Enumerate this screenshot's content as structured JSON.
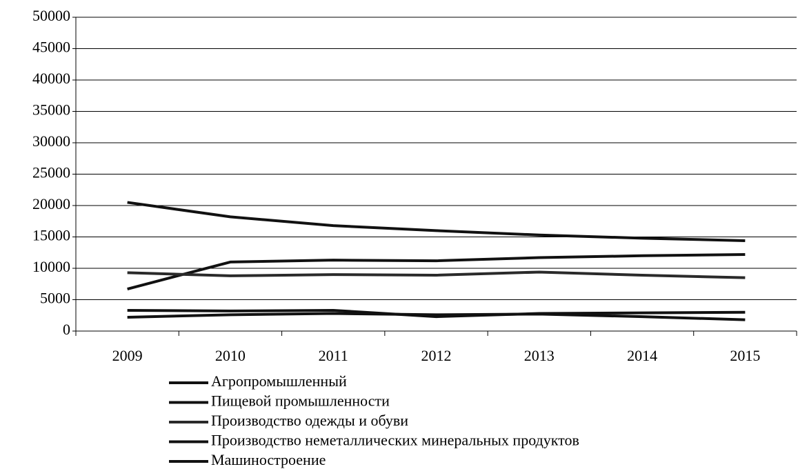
{
  "chart_data": {
    "type": "line",
    "x": [
      "2009",
      "2010",
      "2011",
      "2012",
      "2013",
      "2014",
      "2015"
    ],
    "series": [
      {
        "name": "Агропромышленный",
        "color": "#111111",
        "values": [
          20500,
          18200,
          16800,
          16000,
          15300,
          14800,
          14400
        ]
      },
      {
        "name": "Пищевой промышленности",
        "color": "#111111",
        "values": [
          6700,
          11000,
          11300,
          11200,
          11700,
          12000,
          12200
        ]
      },
      {
        "name": "Производство одежды и обуви",
        "color": "#2a2a2a",
        "values": [
          9300,
          8800,
          9000,
          8900,
          9400,
          8900,
          8500
        ]
      },
      {
        "name": "Производство неметаллических минеральных продуктов",
        "color": "#111111",
        "values": [
          3300,
          3200,
          3300,
          2300,
          2800,
          2900,
          3000
        ]
      },
      {
        "name": "Машиностроение",
        "color": "#111111",
        "values": [
          2200,
          2600,
          2800,
          2600,
          2700,
          2300,
          1800
        ]
      }
    ],
    "ylim": [
      0,
      50000
    ],
    "yticks": [
      0,
      5000,
      10000,
      15000,
      20000,
      25000,
      30000,
      35000,
      40000,
      45000,
      50000
    ],
    "grid": true
  }
}
